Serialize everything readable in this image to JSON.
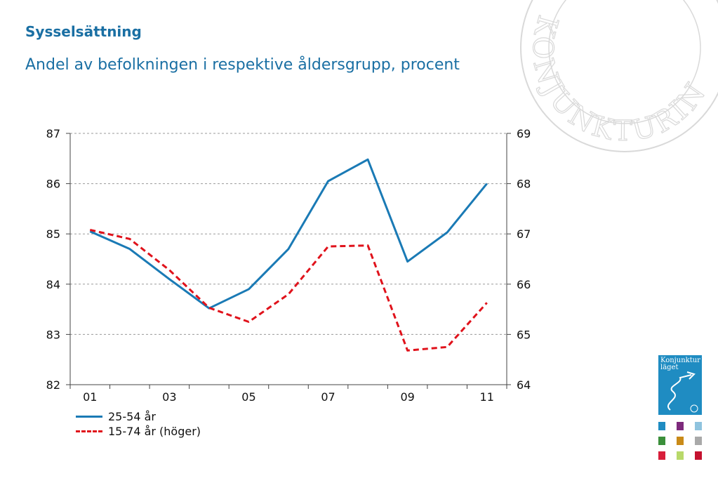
{
  "title": "Sysselsättning",
  "subtitle": "Andel av befolkningen i respektive åldersgrupp, procent",
  "colors": {
    "title": "#1a6fa3",
    "series_blue": "#1a7ab5",
    "series_red": "#e0121b",
    "grid": "#9a9a9a",
    "watermark": "#d9d9d9"
  },
  "watermark": {
    "text": "KONJUNKTURINSTITUTET"
  },
  "book_cover": {
    "title": "Konjunktur läget",
    "thumbnail_colors": [
      "#1f8cc2",
      "#7d2a7c",
      "#8fc3de",
      "#3b8f3b",
      "#c98a18",
      "#a9a9a9",
      "#d81f3b",
      "#b8d96a",
      "#c4122f"
    ]
  },
  "chart_data": {
    "type": "line",
    "x_tick_labels": [
      "01",
      "03",
      "05",
      "07",
      "09",
      "11"
    ],
    "x": [
      2001,
      2002,
      2003,
      2004,
      2005,
      2006,
      2007,
      2008,
      2009,
      2010,
      2011
    ],
    "left_axis": {
      "ylim": [
        82,
        87
      ],
      "ticks": [
        "82",
        "83",
        "84",
        "85",
        "86",
        "87"
      ]
    },
    "right_axis": {
      "ylim": [
        64,
        69
      ],
      "ticks": [
        "64",
        "65",
        "66",
        "67",
        "68",
        "69"
      ]
    },
    "grid": true,
    "legend_position": "bottom-left",
    "series": [
      {
        "name": "25-54 år",
        "axis": "left",
        "style": "solid",
        "values": [
          85.05,
          84.7,
          84.1,
          83.52,
          83.9,
          84.7,
          86.05,
          86.48,
          84.45,
          85.03,
          86.0
        ]
      },
      {
        "name": "15-74 år (höger)",
        "axis": "right",
        "style": "dashed",
        "values": [
          67.08,
          66.9,
          66.28,
          65.53,
          65.25,
          65.8,
          66.75,
          66.77,
          64.68,
          64.75,
          65.63
        ]
      }
    ]
  }
}
